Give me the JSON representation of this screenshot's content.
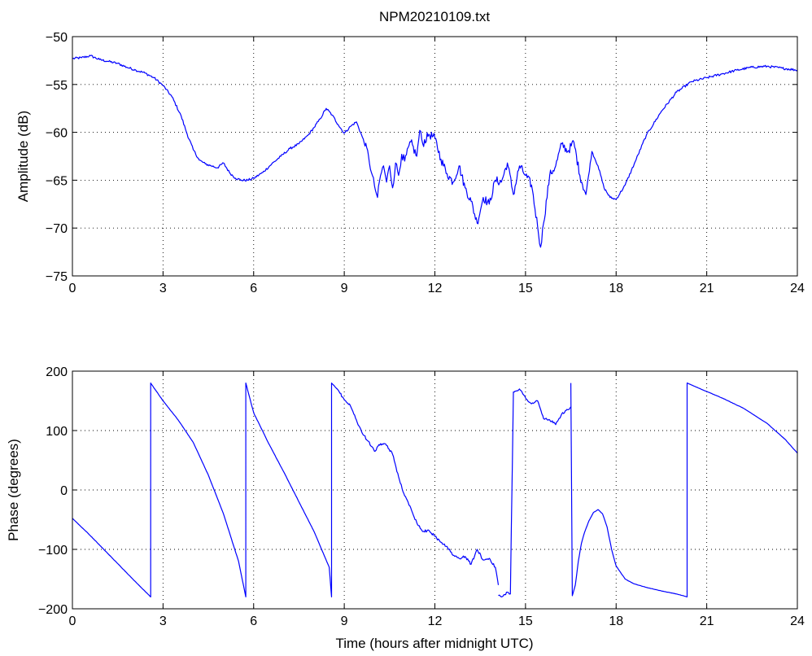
{
  "chart_data": [
    {
      "type": "line",
      "title": "NPM20210109.txt",
      "xlabel": "",
      "ylabel": "Amplitude (dB)",
      "xlim": [
        0,
        24
      ],
      "ylim": [
        -75,
        -50
      ],
      "xticks": [
        "0",
        "3",
        "6",
        "9",
        "12",
        "15",
        "18",
        "21",
        "24"
      ],
      "yticks": [
        "−50",
        "−55",
        "−60",
        "−65",
        "−70",
        "−75"
      ],
      "grid": true,
      "color": "#0000ff",
      "series": [
        {
          "x": [
            0,
            0.3,
            0.6,
            0.9,
            1.2,
            1.5,
            1.8,
            2.1,
            2.4,
            2.7,
            3.0,
            3.3,
            3.6,
            3.8,
            4.0,
            4.2,
            4.4,
            4.6,
            4.8,
            5.0,
            5.2,
            5.4,
            5.6,
            5.8,
            6.0,
            6.3,
            6.6,
            6.9,
            7.2,
            7.5,
            7.8,
            8.0,
            8.2,
            8.4,
            8.6,
            8.8,
            9.0,
            9.2,
            9.4,
            9.6,
            9.8,
            9.9,
            10.0,
            10.1,
            10.2,
            10.3,
            10.4,
            10.5,
            10.6,
            10.7,
            10.8,
            10.9,
            11.0,
            11.2,
            11.4,
            11.5,
            11.6,
            11.8,
            12.0,
            12.2,
            12.4,
            12.6,
            12.8,
            13.0,
            13.2,
            13.4,
            13.6,
            13.8,
            14.0,
            14.2,
            14.4,
            14.6,
            14.8,
            15.0,
            15.2,
            15.4,
            15.5,
            15.6,
            15.8,
            16.0,
            16.2,
            16.4,
            16.6,
            16.8,
            17.0,
            17.2,
            17.4,
            17.6,
            17.8,
            18.0,
            18.3,
            18.6,
            19.0,
            19.5,
            20.0,
            20.5,
            21.0,
            21.5,
            22.0,
            22.5,
            23.0,
            23.5,
            24.0
          ],
          "values": [
            -52.3,
            -52.2,
            -52.0,
            -52.4,
            -52.6,
            -52.8,
            -53.2,
            -53.5,
            -53.8,
            -54.3,
            -55.1,
            -56.3,
            -58.3,
            -60.2,
            -61.8,
            -62.9,
            -63.3,
            -63.5,
            -63.7,
            -63.2,
            -64.2,
            -64.8,
            -65.0,
            -65.0,
            -64.8,
            -64.2,
            -63.3,
            -62.5,
            -61.7,
            -61.2,
            -60.3,
            -59.5,
            -58.6,
            -57.5,
            -58.2,
            -59.2,
            -60.1,
            -59.4,
            -58.9,
            -60.5,
            -62.4,
            -64.2,
            -65.6,
            -66.8,
            -64.5,
            -63.5,
            -65.2,
            -63.5,
            -65.8,
            -63.2,
            -64.5,
            -62.3,
            -63.0,
            -61.0,
            -62.5,
            -59.8,
            -61.2,
            -60.2,
            -60.6,
            -62.8,
            -64.3,
            -65.2,
            -63.5,
            -65.8,
            -67.2,
            -69.5,
            -66.8,
            -67.5,
            -65.0,
            -65.2,
            -63.2,
            -66.5,
            -63.5,
            -64.5,
            -65.5,
            -69.8,
            -72.0,
            -69.5,
            -64.5,
            -63.5,
            -61.2,
            -62.0,
            -61.0,
            -64.5,
            -66.5,
            -62.0,
            -63.5,
            -65.8,
            -66.8,
            -67.0,
            -65.5,
            -63.3,
            -60.3,
            -57.8,
            -55.8,
            -54.7,
            -54.3,
            -53.9,
            -53.5,
            -53.2,
            -53.1,
            -53.3,
            -53.5
          ]
        }
      ]
    },
    {
      "type": "line",
      "title": "",
      "xlabel": "Time (hours after midnight UTC)",
      "ylabel": "Phase (degrees)",
      "xlim": [
        0,
        24
      ],
      "ylim": [
        -200,
        200
      ],
      "xticks": [
        "0",
        "3",
        "6",
        "9",
        "12",
        "15",
        "18",
        "21",
        "24"
      ],
      "yticks": [
        "200",
        "100",
        "0",
        "−100",
        "−200"
      ],
      "grid": true,
      "color": "#0000ff",
      "series": [
        {
          "x": [
            0,
            0.5,
            1.0,
            1.5,
            2.0,
            2.59,
            2.59,
            3.0,
            3.5,
            4.0,
            4.5,
            5.0,
            5.5,
            5.74,
            5.74,
            6.0,
            6.5,
            7.0,
            7.5,
            8.0,
            8.5,
            8.58,
            8.58,
            8.8,
            9.0,
            9.2,
            9.4,
            9.6,
            9.8,
            10.0,
            10.2,
            10.4,
            10.6,
            10.8,
            11.0,
            11.2,
            11.4,
            11.6,
            11.8,
            12.0,
            12.2,
            12.4,
            12.6,
            12.8,
            13.0,
            13.2,
            13.4,
            13.6,
            13.8,
            14.0,
            14.1
          ],
          "values": [
            -48,
            -72,
            -98,
            -124,
            -150,
            -180,
            180,
            150,
            118,
            80,
            25,
            -40,
            -120,
            -180,
            180,
            130,
            78,
            30,
            -20,
            -70,
            -130,
            -180,
            180,
            168,
            152,
            142,
            118,
            95,
            82,
            65,
            78,
            75,
            60,
            22,
            -10,
            -30,
            -55,
            -70,
            -68,
            -78,
            -88,
            -95,
            -110,
            -115,
            -112,
            -125,
            -100,
            -118,
            -115,
            -130,
            -160
          ]
        },
        {
          "x": [
            14.1,
            14.2,
            14.4,
            14.5,
            14.6,
            14.8,
            15.0,
            15.2,
            15.4,
            15.6,
            15.8,
            16.0,
            16.2,
            16.4,
            16.5
          ],
          "values": [
            -178,
            -180,
            -172,
            -175,
            165,
            170,
            155,
            145,
            150,
            120,
            118,
            110,
            128,
            135,
            140
          ]
        },
        {
          "x": [
            16.5,
            16.55,
            16.65,
            16.75,
            16.85,
            16.95,
            17.1,
            17.25,
            17.4,
            17.55,
            17.7,
            17.85,
            18.0,
            18.3,
            18.6,
            19.0,
            19.5,
            20.0,
            20.35,
            20.35,
            20.8,
            21.5,
            22.2,
            23.0,
            23.6,
            24.0
          ],
          "values": [
            180,
            -178,
            -160,
            -120,
            -90,
            -72,
            -52,
            -38,
            -33,
            -40,
            -62,
            -100,
            -128,
            -150,
            -158,
            -164,
            -170,
            -175,
            -180,
            180,
            170,
            155,
            138,
            112,
            85,
            62
          ]
        }
      ]
    }
  ]
}
